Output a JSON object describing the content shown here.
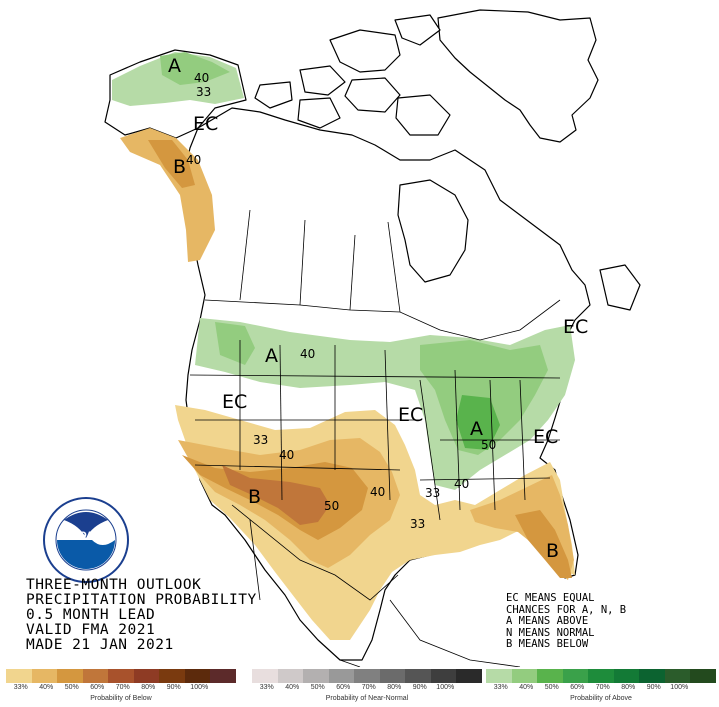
{
  "title": {
    "line1": "THREE-MONTH OUTLOOK",
    "line2": "PRECIPITATION PROBABILITY",
    "line3": "0.5 MONTH LEAD",
    "line4": "VALID FMA 2021",
    "line5": "MADE 21 JAN 2021"
  },
  "legend_notes": {
    "line1": "EC MEANS EQUAL",
    "line2": "CHANCES FOR A, N, B",
    "line3": "A MEANS ABOVE",
    "line4": "N MEANS NORMAL",
    "line5": "B MEANS BELOW"
  },
  "logo": {
    "center_text": "NOAA",
    "ring_text": "NATIONAL OCEANIC AND ATMOSPHERIC ADMINISTRATION · U.S. DEPARTMENT OF COMMERCE"
  },
  "map_labels": {
    "alaska_a": "A",
    "alaska_40": "40",
    "alaska_33": "33",
    "alaska_ec": "EC",
    "panhandle_b": "B",
    "panhandle_40": "40",
    "north_a": "A",
    "north_40": "40",
    "west_ec": "EC",
    "central_ec": "EC",
    "northeast_ec": "EC",
    "east_ec": "EC",
    "ohio_a": "A",
    "ohio_50": "50",
    "ohio_40": "40",
    "ohio_33": "33",
    "south_33a": "33",
    "south_40a": "40",
    "south_40b": "40",
    "south_50": "50",
    "south_33b": "33",
    "southwest_b": "B",
    "florida_b": "B"
  },
  "scales": {
    "below": {
      "title": "Probability of Below",
      "ticks": [
        "33%",
        "40%",
        "50%",
        "60%",
        "70%",
        "80%",
        "90%",
        "100%"
      ],
      "colors": [
        "#f1d58e",
        "#e6b764",
        "#d4973f",
        "#c0763a",
        "#a8522c",
        "#8e3b24",
        "#7a3a0f",
        "#5c2a0c",
        "#5c2a2a"
      ]
    },
    "normal": {
      "title": "Probability of Near-Normal",
      "ticks": [
        "33%",
        "40%",
        "50%",
        "60%",
        "70%",
        "80%",
        "90%",
        "100%"
      ],
      "colors": [
        "#e8dede",
        "#cfc9c9",
        "#b3b0b0",
        "#999999",
        "#808080",
        "#6b6b6b",
        "#555555",
        "#3e3e3e",
        "#2a2a2a"
      ]
    },
    "above": {
      "title": "Probability of Above",
      "ticks": [
        "33%",
        "40%",
        "50%",
        "60%",
        "70%",
        "80%",
        "90%",
        "100%"
      ],
      "colors": [
        "#b6dba7",
        "#93cc7f",
        "#59b34c",
        "#3aa14a",
        "#1e8c3b",
        "#137a36",
        "#0c6330",
        "#2b5c2b",
        "#234a1e"
      ]
    }
  },
  "colors": {
    "above_33": "#b6dba7",
    "above_40": "#93cc7f",
    "above_50": "#59b34c",
    "below_33": "#f1d58e",
    "below_40": "#e6b764",
    "below_50": "#d4973f",
    "below_60": "#c0763a"
  }
}
